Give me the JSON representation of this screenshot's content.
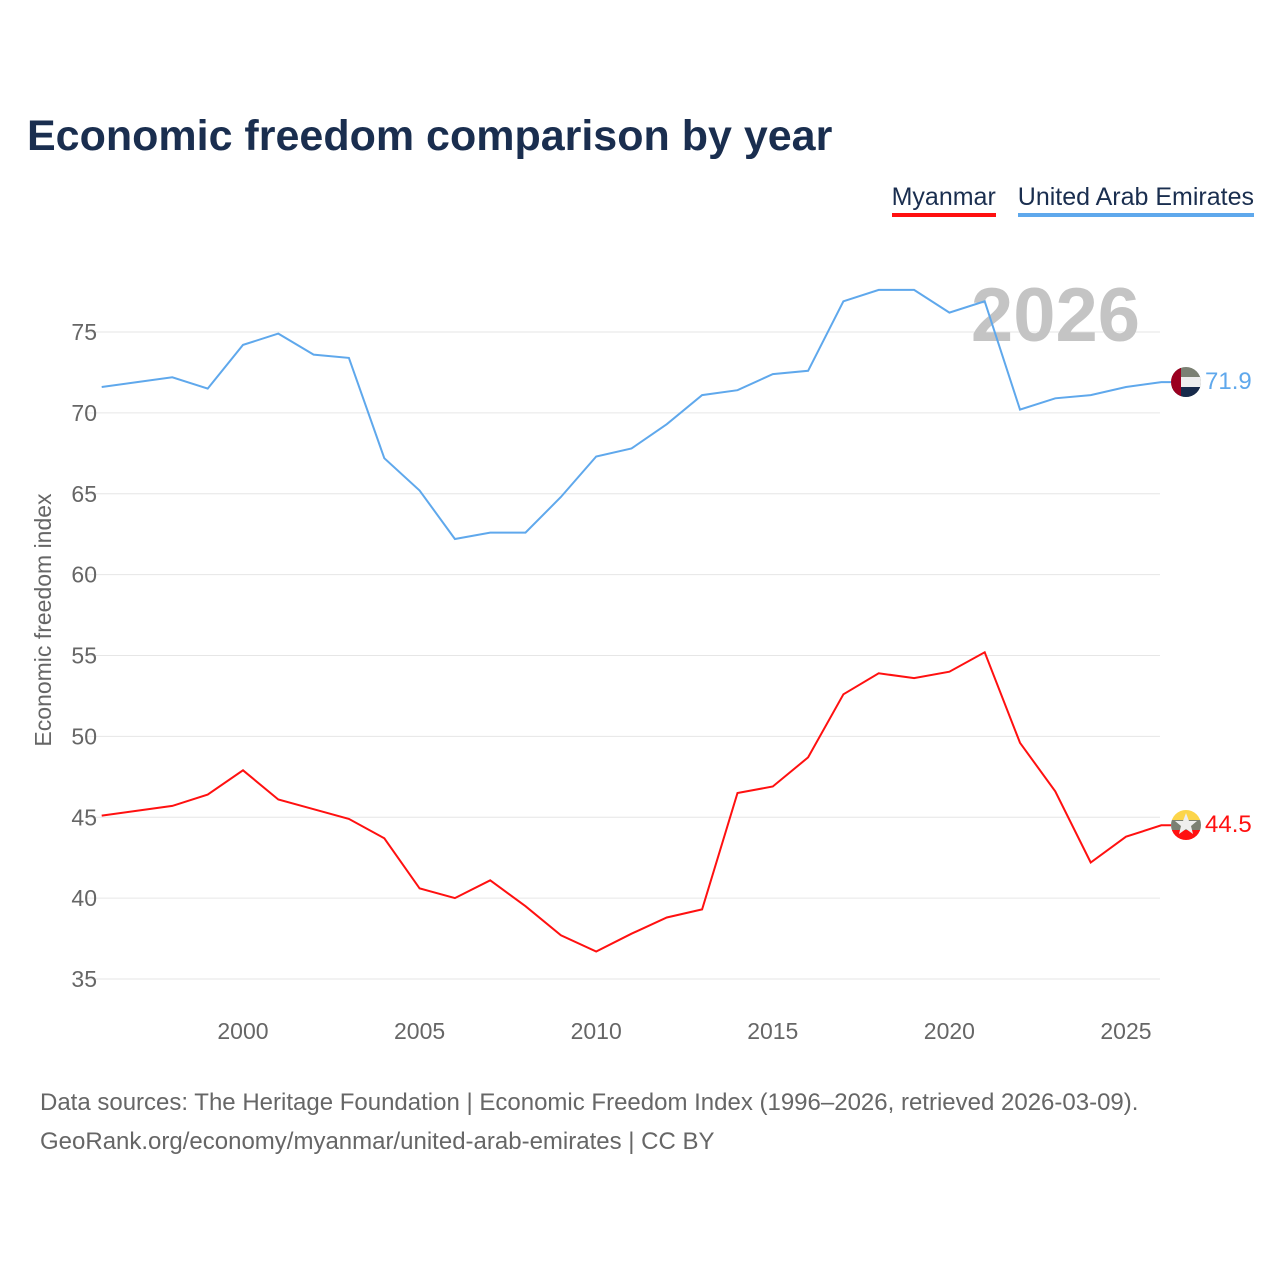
{
  "chart_data": {
    "type": "line",
    "title": "Economic freedom comparison by year",
    "xlabel": "",
    "ylabel": "Economic freedom index",
    "xlim": [
      1996,
      2026
    ],
    "ylim": [
      33,
      79
    ],
    "x_ticks": [
      2000,
      2005,
      2010,
      2015,
      2020,
      2025
    ],
    "y_ticks": [
      35,
      40,
      45,
      50,
      55,
      60,
      65,
      70,
      75
    ],
    "grid": true,
    "legend_position": "top-right",
    "annotation_year": "2026",
    "x": [
      1996,
      1997,
      1998,
      1999,
      2000,
      2001,
      2002,
      2003,
      2004,
      2005,
      2006,
      2007,
      2008,
      2009,
      2010,
      2011,
      2012,
      2013,
      2014,
      2015,
      2016,
      2017,
      2018,
      2019,
      2020,
      2021,
      2022,
      2023,
      2024,
      2025,
      2026
    ],
    "series": [
      {
        "name": "Myanmar",
        "color": "#ff1010",
        "end_label": "44.5",
        "values": [
          45.1,
          45.4,
          45.7,
          46.4,
          47.9,
          46.1,
          45.5,
          44.9,
          43.7,
          40.6,
          40.0,
          41.1,
          39.5,
          37.7,
          36.7,
          37.8,
          38.8,
          39.3,
          46.5,
          46.9,
          48.7,
          52.6,
          53.9,
          53.6,
          54.0,
          55.2,
          49.6,
          46.6,
          42.2,
          43.8,
          44.5
        ]
      },
      {
        "name": "United Arab Emirates",
        "color": "#5fa8ec",
        "end_label": "71.9",
        "values": [
          71.6,
          71.9,
          72.2,
          71.5,
          74.2,
          74.9,
          73.6,
          73.4,
          67.2,
          65.2,
          62.2,
          62.6,
          62.6,
          64.8,
          67.3,
          67.8,
          69.3,
          71.1,
          71.4,
          72.4,
          72.6,
          76.9,
          77.6,
          77.6,
          76.2,
          76.9,
          70.2,
          70.9,
          71.1,
          71.6,
          71.9
        ]
      }
    ]
  },
  "footer": {
    "line1": "Data sources: The Heritage Foundation | Economic Freedom Index (1996–2026, retrieved 2026-03-09).",
    "line2": "GeoRank.org/economy/myanmar/united-arab-emirates | CC BY"
  }
}
